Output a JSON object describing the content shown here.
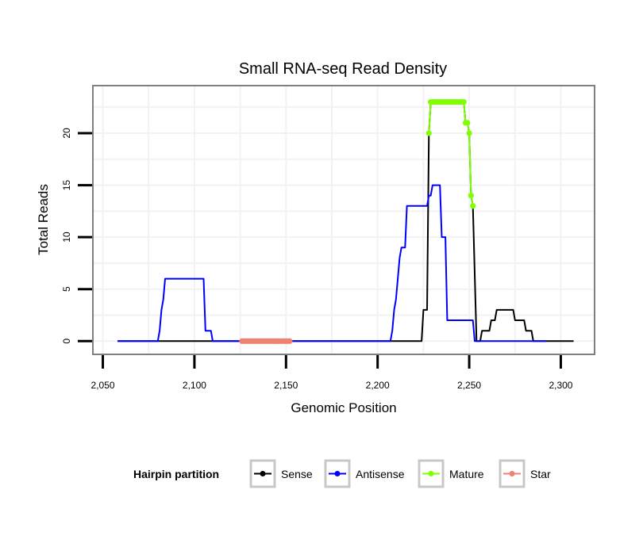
{
  "chart_data": {
    "type": "line",
    "title": "Small RNA-seq Read Density",
    "xlabel": "Genomic Position",
    "ylabel": "Total Reads",
    "xlim": [
      2045,
      2318
    ],
    "ylim": [
      -1.2,
      24.5
    ],
    "xticks": [
      2050,
      2100,
      2150,
      2200,
      2250,
      2300
    ],
    "xtick_labels": [
      "2,050",
      "2,100",
      "2,150",
      "2,200",
      "2,250",
      "2,300"
    ],
    "yticks": [
      0,
      5,
      10,
      15,
      20
    ],
    "ytick_labels": [
      "0",
      "5",
      "10",
      "15",
      "20"
    ],
    "grid": true,
    "legend": {
      "title": "Hairpin partition",
      "position": "bottom",
      "entries": [
        {
          "name": "Sense",
          "color": "#000000"
        },
        {
          "name": "Antisense",
          "color": "#0000ff"
        },
        {
          "name": "Mature",
          "color": "#7fff00"
        },
        {
          "name": "Star",
          "color": "#f08070"
        }
      ]
    },
    "series": [
      {
        "name": "Sense",
        "color": "#000000",
        "points": [
          [
            2058,
            0
          ],
          [
            2224,
            0
          ],
          [
            2225,
            3
          ],
          [
            2227,
            3
          ],
          [
            2228,
            20
          ],
          [
            2229,
            23
          ],
          [
            2247,
            23
          ],
          [
            2248,
            21
          ],
          [
            2249,
            21
          ],
          [
            2250,
            20
          ],
          [
            2251,
            14
          ],
          [
            2252,
            13
          ],
          [
            2254,
            0
          ],
          [
            2256,
            0
          ],
          [
            2257,
            1
          ],
          [
            2261,
            1
          ],
          [
            2262,
            2
          ],
          [
            2264,
            2
          ],
          [
            2265,
            3
          ],
          [
            2274,
            3
          ],
          [
            2275,
            2
          ],
          [
            2280,
            2
          ],
          [
            2281,
            1
          ],
          [
            2284,
            1
          ],
          [
            2285,
            0
          ],
          [
            2307,
            0
          ]
        ]
      },
      {
        "name": "Antisense",
        "color": "#0000ff",
        "points": [
          [
            2058,
            0
          ],
          [
            2080,
            0
          ],
          [
            2081,
            1
          ],
          [
            2082,
            3
          ],
          [
            2083,
            4
          ],
          [
            2084,
            6
          ],
          [
            2105,
            6
          ],
          [
            2106,
            1
          ],
          [
            2109,
            1
          ],
          [
            2110,
            0
          ],
          [
            2207,
            0
          ],
          [
            2208,
            1
          ],
          [
            2209,
            3
          ],
          [
            2210,
            4
          ],
          [
            2212,
            8
          ],
          [
            2213,
            9
          ],
          [
            2215,
            9
          ],
          [
            2216,
            13
          ],
          [
            2227,
            13
          ],
          [
            2228,
            14
          ],
          [
            2229,
            14
          ],
          [
            2230,
            15
          ],
          [
            2234,
            15
          ],
          [
            2235,
            10
          ],
          [
            2237,
            10
          ],
          [
            2238,
            2
          ],
          [
            2252,
            2
          ],
          [
            2253,
            0
          ],
          [
            2292,
            0
          ]
        ]
      }
    ],
    "highlight_points": [
      {
        "name": "Mature",
        "color": "#7fff00",
        "points": [
          [
            2228,
            20
          ],
          [
            2229,
            23
          ],
          [
            2230,
            23
          ],
          [
            2231,
            23
          ],
          [
            2232,
            23
          ],
          [
            2233,
            23
          ],
          [
            2234,
            23
          ],
          [
            2235,
            23
          ],
          [
            2236,
            23
          ],
          [
            2237,
            23
          ],
          [
            2238,
            23
          ],
          [
            2239,
            23
          ],
          [
            2240,
            23
          ],
          [
            2241,
            23
          ],
          [
            2242,
            23
          ],
          [
            2243,
            23
          ],
          [
            2244,
            23
          ],
          [
            2245,
            23
          ],
          [
            2246,
            23
          ],
          [
            2247,
            23
          ],
          [
            2248,
            21
          ],
          [
            2249,
            21
          ],
          [
            2250,
            20
          ],
          [
            2251,
            14
          ],
          [
            2252,
            13
          ]
        ]
      },
      {
        "name": "Star",
        "color": "#f08070",
        "points": [
          [
            2126,
            0
          ],
          [
            2127,
            0
          ],
          [
            2128,
            0
          ],
          [
            2129,
            0
          ],
          [
            2130,
            0
          ],
          [
            2131,
            0
          ],
          [
            2132,
            0
          ],
          [
            2133,
            0
          ],
          [
            2134,
            0
          ],
          [
            2135,
            0
          ],
          [
            2136,
            0
          ],
          [
            2137,
            0
          ],
          [
            2138,
            0
          ],
          [
            2139,
            0
          ],
          [
            2140,
            0
          ],
          [
            2141,
            0
          ],
          [
            2142,
            0
          ],
          [
            2143,
            0
          ],
          [
            2144,
            0
          ],
          [
            2145,
            0
          ],
          [
            2146,
            0
          ],
          [
            2147,
            0
          ],
          [
            2148,
            0
          ],
          [
            2149,
            0
          ],
          [
            2150,
            0
          ],
          [
            2151,
            0
          ],
          [
            2152,
            0
          ]
        ]
      }
    ]
  }
}
